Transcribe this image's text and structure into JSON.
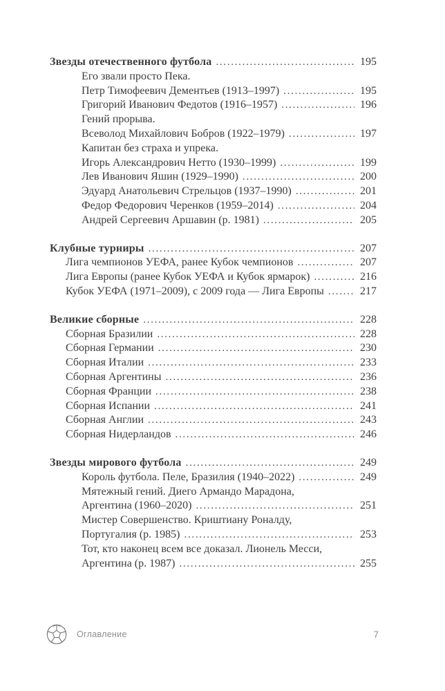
{
  "colors": {
    "background": "#ffffff",
    "text": "#3c3c3c",
    "leader_dots": "#4d4d4d",
    "footer_text": "#8e8e8e",
    "icon_stroke": "#7a7a7a"
  },
  "footer": {
    "icon": "soccer-ball-icon",
    "label": "Оглавление",
    "page_number": "7"
  },
  "toc": {
    "lines": [
      {
        "level": 0,
        "bold": true,
        "text": "Звезды отечественного футбола",
        "page": "195"
      },
      {
        "level": 2,
        "text": "Его звали просто Пека."
      },
      {
        "level": 2,
        "text": "Петр Тимофеевич Дементьев (1913–1997)",
        "page": "195"
      },
      {
        "level": 2,
        "text": "Григорий Иванович Федотов (1916–1957)",
        "page": "196"
      },
      {
        "level": 2,
        "text": "Гений прорыва."
      },
      {
        "level": 2,
        "text": "Всеволод Михайлович Бобров (1922–1979)",
        "page": "197"
      },
      {
        "level": 2,
        "text": "Капитан без страха и упрека."
      },
      {
        "level": 2,
        "text": "Игорь Александрович Нетто (1930–1999)",
        "page": "199"
      },
      {
        "level": 2,
        "text": "Лев Иванович Яшин (1929–1990)",
        "page": "200"
      },
      {
        "level": 2,
        "text": "Эдуард Анатольевич Стрельцов (1937–1990)",
        "page": "201"
      },
      {
        "level": 2,
        "text": "Федор Федорович Черенков (1959–2014)",
        "page": "204"
      },
      {
        "level": 2,
        "text": "Андрей Сергеевич Аршавин (р. 1981)",
        "page": "205"
      },
      {
        "level": 0,
        "bold": true,
        "gap": true,
        "text": "Клубные турниры",
        "page": "207"
      },
      {
        "level": 1,
        "text": "Лига чемпионов УЕФА, ранее Кубок чемпионов",
        "page": "207"
      },
      {
        "level": 1,
        "text": "Лига Европы (ранее Кубок УЕФА и Кубок ярмарок)",
        "page": "216"
      },
      {
        "level": 1,
        "text": "Кубок УЕФА (1971–2009), с 2009 года — Лига Европы",
        "page": "217"
      },
      {
        "level": 0,
        "bold": true,
        "gap": true,
        "text": "Великие сборные",
        "page": "228"
      },
      {
        "level": 1,
        "text": "Сборная Бразилии",
        "page": "228"
      },
      {
        "level": 1,
        "text": "Сборная Германии",
        "page": "230"
      },
      {
        "level": 1,
        "text": "Сборная Италии",
        "page": "233"
      },
      {
        "level": 1,
        "text": "Сборная Аргентины",
        "page": "236"
      },
      {
        "level": 1,
        "text": "Сборная Франции",
        "page": "238"
      },
      {
        "level": 1,
        "text": "Сборная Испании",
        "page": "241"
      },
      {
        "level": 1,
        "text": "Сборная Англии",
        "page": "243"
      },
      {
        "level": 1,
        "text": "Сборная Нидерландов",
        "page": "246"
      },
      {
        "level": 0,
        "bold": true,
        "gap": true,
        "text": "Звезды мирового футбола",
        "page": "249"
      },
      {
        "level": 2,
        "text": "Король футбола. Пеле, Бразилия (1940–2022)",
        "page": "249"
      },
      {
        "level": 2,
        "text": "Мятежный гений. Диего Армандо Марадона,"
      },
      {
        "level": 2,
        "text": "Аргентина (1960–2020)",
        "page": "251"
      },
      {
        "level": 2,
        "text": "Мистер Совершенство. Криштиану Роналду,"
      },
      {
        "level": 2,
        "text": "Португалия (р. 1985)",
        "page": "253"
      },
      {
        "level": 2,
        "text": "Тот, кто наконец всем все доказал. Лионель Месси,"
      },
      {
        "level": 2,
        "text": "Аргентина (р. 1987)",
        "page": "255"
      }
    ]
  }
}
